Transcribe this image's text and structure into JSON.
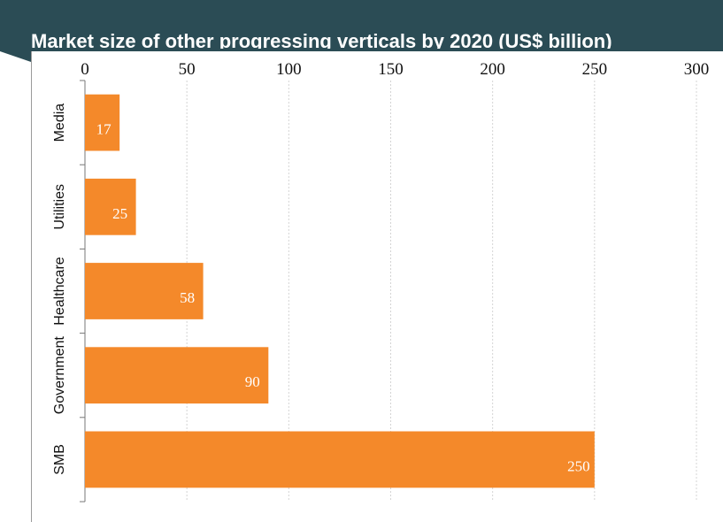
{
  "chart_data": {
    "type": "bar",
    "orientation": "horizontal",
    "title": "Market size of other progressing verticals by 2020 (US$ billion)",
    "categories": [
      "Media",
      "Utilities",
      "Healthcare",
      "Government",
      "SMB"
    ],
    "values": [
      17,
      25,
      58,
      90,
      250
    ],
    "data_labels": [
      "17",
      "25",
      "58",
      "90",
      "250"
    ],
    "x_ticks": [
      "0",
      "50",
      "100",
      "150",
      "200",
      "250",
      "300"
    ],
    "xlim": [
      0,
      300
    ],
    "x_axis_position": "top",
    "grid": "vertical dotted",
    "bar_color": "#f4892a",
    "header_color": "#2b4c55"
  }
}
